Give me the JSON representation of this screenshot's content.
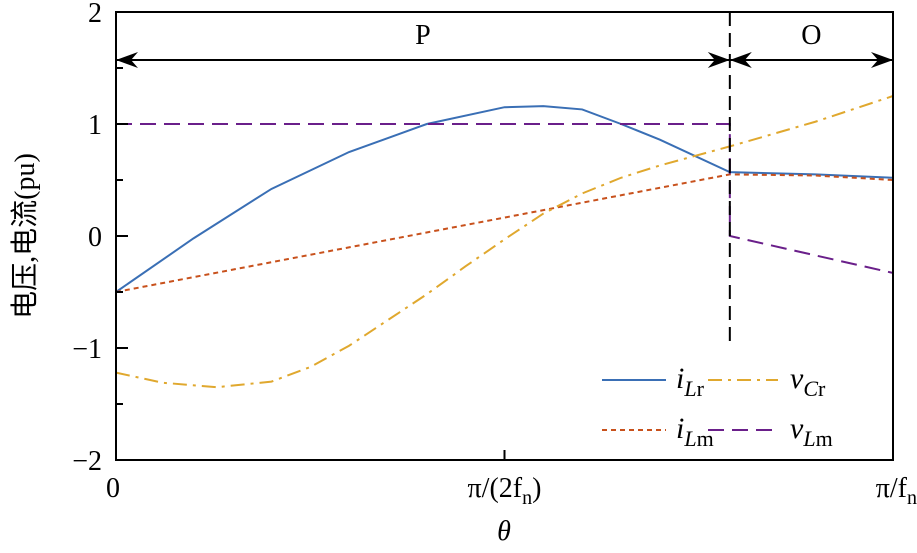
{
  "chart_data": {
    "type": "line",
    "title": "",
    "xlabel": "θ",
    "ylabel": "电压,电流(pu)",
    "xlim": [
      0,
      1
    ],
    "ylim": [
      -2,
      2
    ],
    "x_unit_note": "x in units of π/f_n",
    "x_ticks": [
      {
        "value": 0,
        "label": "0",
        "main": "0",
        "sub": ""
      },
      {
        "value": 0.5,
        "label": "π/(2fn)",
        "main": "π/(2f",
        "sub": "n",
        "tail": ")"
      },
      {
        "value": 1,
        "label": "π/fn",
        "main": "π/f",
        "sub": "n",
        "tail": ""
      }
    ],
    "y_ticks": [
      2,
      1,
      0,
      -1,
      -2
    ],
    "y_tick_labels": [
      "2",
      "1",
      "0",
      "−1",
      "−2"
    ],
    "grid": false,
    "legend_placement": "bottom-right",
    "regions": [
      {
        "label": "P",
        "from": 0,
        "to": 0.79
      },
      {
        "label": "O",
        "from": 0.79,
        "to": 1
      }
    ],
    "boundary_x": 0.79,
    "series": [
      {
        "name": "iLr",
        "legend_main": "i",
        "legend_sub": "Lr",
        "color": "#3a6fb5",
        "dash": "solid",
        "points": [
          [
            0,
            -0.5
          ],
          [
            0.1,
            -0.02
          ],
          [
            0.2,
            0.42
          ],
          [
            0.3,
            0.75
          ],
          [
            0.4,
            1.0
          ],
          [
            0.5,
            1.15
          ],
          [
            0.55,
            1.16
          ],
          [
            0.6,
            1.13
          ],
          [
            0.65,
            1.0
          ],
          [
            0.7,
            0.86
          ],
          [
            0.79,
            0.57
          ],
          [
            0.9,
            0.55
          ],
          [
            1.0,
            0.52
          ]
        ]
      },
      {
        "name": "iLm",
        "legend_main": "i",
        "legend_sub": "Lm",
        "color": "#c8511c",
        "dash": "dotted",
        "points": [
          [
            0,
            -0.5
          ],
          [
            0.79,
            0.55
          ],
          [
            0.9,
            0.54
          ],
          [
            1.0,
            0.5
          ]
        ]
      },
      {
        "name": "vCr",
        "legend_main": "v",
        "legend_sub": "Cr",
        "color": "#e0a82e",
        "dash": "dashdot",
        "points": [
          [
            0,
            -1.22
          ],
          [
            0.06,
            -1.31
          ],
          [
            0.13,
            -1.35
          ],
          [
            0.2,
            -1.3
          ],
          [
            0.25,
            -1.17
          ],
          [
            0.3,
            -0.98
          ],
          [
            0.35,
            -0.75
          ],
          [
            0.4,
            -0.52
          ],
          [
            0.45,
            -0.27
          ],
          [
            0.5,
            -0.03
          ],
          [
            0.55,
            0.2
          ],
          [
            0.6,
            0.38
          ],
          [
            0.65,
            0.52
          ],
          [
            0.7,
            0.63
          ],
          [
            0.79,
            0.8
          ],
          [
            0.9,
            1.02
          ],
          [
            1.0,
            1.25
          ]
        ]
      },
      {
        "name": "vLm",
        "legend_main": "v",
        "legend_sub": "Lm",
        "color": "#6a1f8a",
        "dash": "dashed",
        "points": [
          [
            0,
            1
          ],
          [
            0.79,
            1
          ],
          [
            0.79,
            0
          ],
          [
            1.0,
            -0.33
          ]
        ]
      }
    ]
  }
}
